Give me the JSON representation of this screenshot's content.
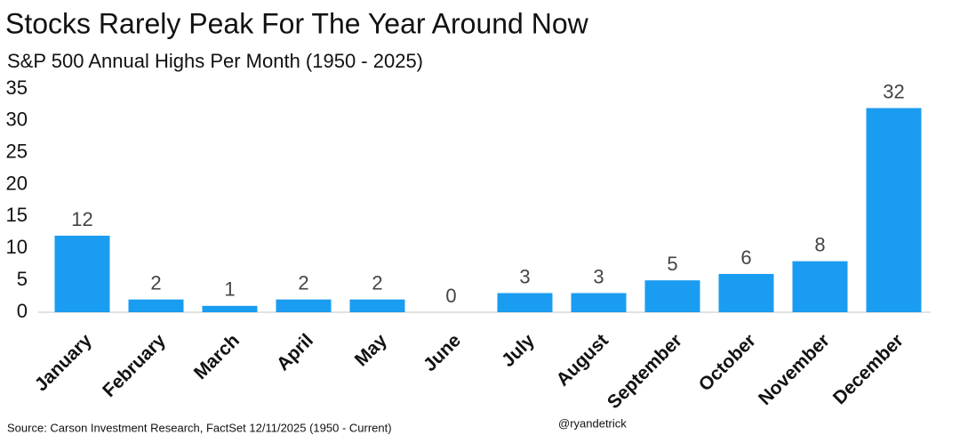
{
  "chart_data": {
    "type": "bar",
    "title": "Stocks Rarely Peak For The Year Around Now",
    "subtitle": "S&P 500 Annual Highs Per Month (1950 - 2025)",
    "categories": [
      "January",
      "February",
      "March",
      "April",
      "May",
      "June",
      "July",
      "August",
      "September",
      "October",
      "November",
      "December"
    ],
    "values": [
      12,
      2,
      1,
      2,
      2,
      0,
      3,
      3,
      5,
      6,
      8,
      32
    ],
    "color": "#1a9cf0",
    "ylim": [
      0,
      35
    ],
    "yticks": [
      0,
      5,
      10,
      15,
      20,
      25,
      30,
      35
    ],
    "grid": false,
    "source": "Source: Carson Investment Research, FactSet 12/11/2025 (1950 - Current)",
    "credit": "@ryandetrick"
  }
}
